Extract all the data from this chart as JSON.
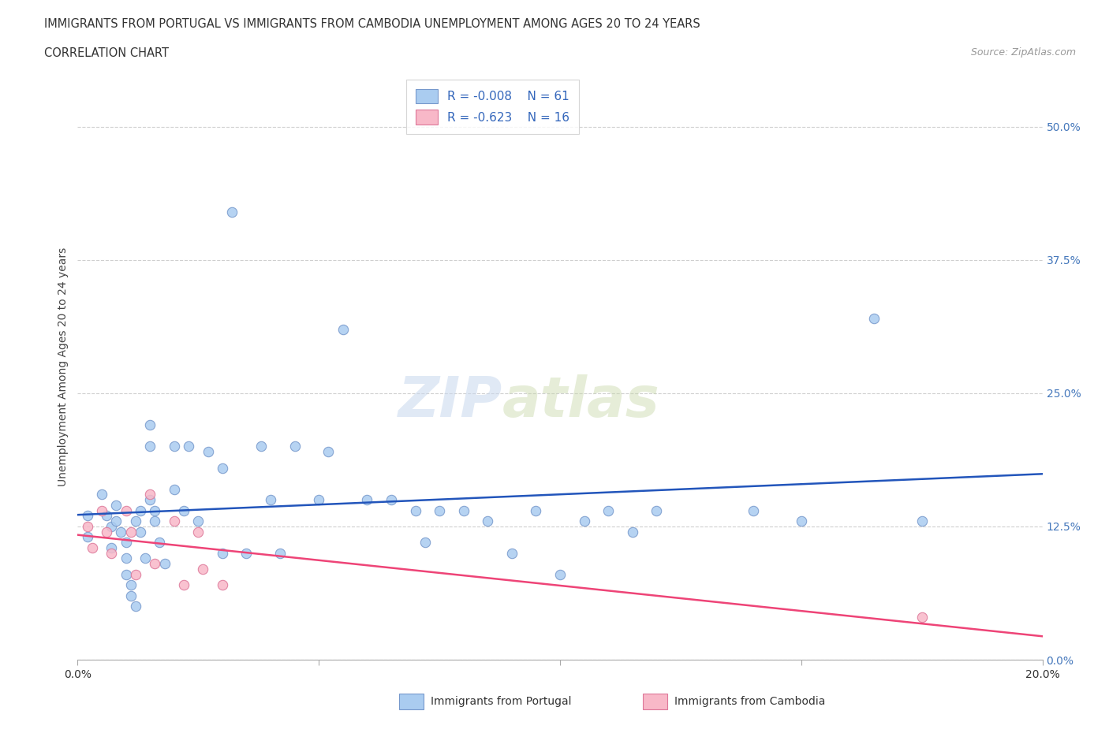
{
  "title_line1": "IMMIGRANTS FROM PORTUGAL VS IMMIGRANTS FROM CAMBODIA UNEMPLOYMENT AMONG AGES 20 TO 24 YEARS",
  "title_line2": "CORRELATION CHART",
  "source_text": "Source: ZipAtlas.com",
  "ylabel": "Unemployment Among Ages 20 to 24 years",
  "xlim": [
    0.0,
    0.2
  ],
  "ylim": [
    0.0,
    0.55
  ],
  "yticks": [
    0.0,
    0.125,
    0.25,
    0.375,
    0.5
  ],
  "ytick_labels": [
    "0.0%",
    "12.5%",
    "25.0%",
    "37.5%",
    "50.0%"
  ],
  "xticks": [
    0.0,
    0.05,
    0.1,
    0.15,
    0.2
  ],
  "xtick_labels": [
    "0.0%",
    "",
    "",
    "",
    "20.0%"
  ],
  "watermark_zip": "ZIP",
  "watermark_atlas": "atlas",
  "portugal_color": "#aaccf0",
  "portugal_edge": "#7799cc",
  "cambodia_color": "#f8b8c8",
  "cambodia_edge": "#dd7799",
  "regression_portugal_color": "#2255bb",
  "regression_cambodia_color": "#ee4477",
  "legend_R_portugal": "R = -0.008",
  "legend_N_portugal": "N = 61",
  "legend_R_cambodia": "R = -0.623",
  "legend_N_cambodia": "N = 16",
  "label_portugal": "Immigrants from Portugal",
  "label_cambodia": "Immigrants from Cambodia",
  "grid_color": "#bbbbbb",
  "background_color": "#ffffff",
  "portugal_x": [
    0.002,
    0.002,
    0.005,
    0.006,
    0.007,
    0.007,
    0.008,
    0.008,
    0.009,
    0.01,
    0.01,
    0.01,
    0.011,
    0.011,
    0.012,
    0.012,
    0.013,
    0.013,
    0.014,
    0.015,
    0.015,
    0.015,
    0.016,
    0.016,
    0.017,
    0.018,
    0.02,
    0.02,
    0.022,
    0.023,
    0.025,
    0.027,
    0.03,
    0.03,
    0.032,
    0.035,
    0.038,
    0.04,
    0.042,
    0.045,
    0.05,
    0.052,
    0.055,
    0.06,
    0.065,
    0.07,
    0.072,
    0.075,
    0.08,
    0.085,
    0.09,
    0.095,
    0.1,
    0.105,
    0.11,
    0.115,
    0.12,
    0.14,
    0.15,
    0.165,
    0.175
  ],
  "portugal_y": [
    0.135,
    0.115,
    0.155,
    0.135,
    0.125,
    0.105,
    0.145,
    0.13,
    0.12,
    0.11,
    0.095,
    0.08,
    0.07,
    0.06,
    0.05,
    0.13,
    0.14,
    0.12,
    0.095,
    0.22,
    0.2,
    0.15,
    0.14,
    0.13,
    0.11,
    0.09,
    0.2,
    0.16,
    0.14,
    0.2,
    0.13,
    0.195,
    0.18,
    0.1,
    0.42,
    0.1,
    0.2,
    0.15,
    0.1,
    0.2,
    0.15,
    0.195,
    0.31,
    0.15,
    0.15,
    0.14,
    0.11,
    0.14,
    0.14,
    0.13,
    0.1,
    0.14,
    0.08,
    0.13,
    0.14,
    0.12,
    0.14,
    0.14,
    0.13,
    0.32,
    0.13
  ],
  "cambodia_x": [
    0.002,
    0.003,
    0.005,
    0.006,
    0.007,
    0.01,
    0.011,
    0.012,
    0.015,
    0.016,
    0.02,
    0.022,
    0.025,
    0.026,
    0.03,
    0.175
  ],
  "cambodia_y": [
    0.125,
    0.105,
    0.14,
    0.12,
    0.1,
    0.14,
    0.12,
    0.08,
    0.155,
    0.09,
    0.13,
    0.07,
    0.12,
    0.085,
    0.07,
    0.04
  ]
}
